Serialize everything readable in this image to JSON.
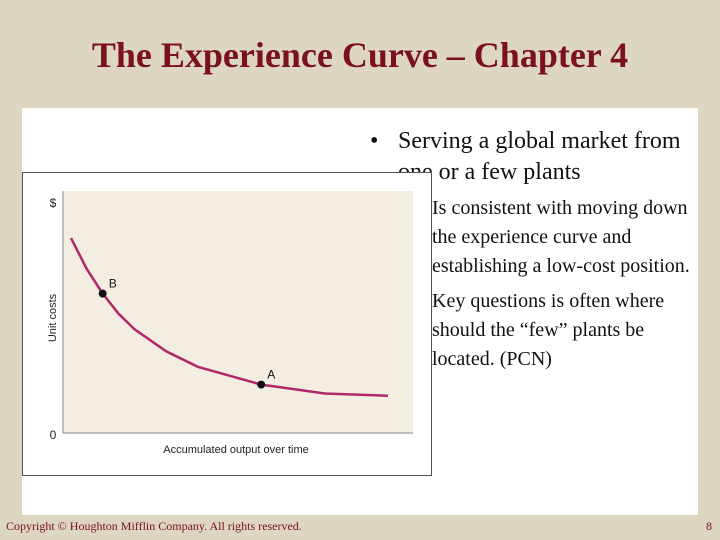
{
  "slide": {
    "title": "The Experience Curve – Chapter 4",
    "footer_copyright": "Copyright © Houghton Mifflin Company. All rights reserved.",
    "page_number": "8",
    "colors": {
      "title": "#7a1020",
      "frame": "#ddd6c0",
      "plot_bg": "#f4ede2",
      "curve": "#b0286a"
    }
  },
  "bullets": {
    "main": "Serving a global market from one or a few plants",
    "sub": [
      "Is consistent with moving down the experience curve and establishing a low-cost position.",
      "Key questions is often where should the “few” plants be located. (PCN)"
    ]
  },
  "chart_data": {
    "type": "line",
    "title": "",
    "xlabel": "Accumulated output over time",
    "ylabel": "Unit costs",
    "y_top_label": "$",
    "origin_label": "0",
    "series": [
      {
        "x": [
          0.0,
          0.05,
          0.1,
          0.15,
          0.2,
          0.3,
          0.4,
          0.5,
          0.6,
          0.7,
          0.8,
          0.9,
          1.0
        ],
        "y": [
          0.86,
          0.72,
          0.61,
          0.52,
          0.45,
          0.35,
          0.28,
          0.24,
          0.2,
          0.18,
          0.16,
          0.155,
          0.15
        ]
      }
    ],
    "points": [
      {
        "label": "B",
        "x": 0.1,
        "y": 0.61
      },
      {
        "label": "A",
        "x": 0.6,
        "y": 0.2
      }
    ],
    "xlim": [
      0,
      1
    ],
    "ylim": [
      0,
      1
    ],
    "grid": false
  }
}
